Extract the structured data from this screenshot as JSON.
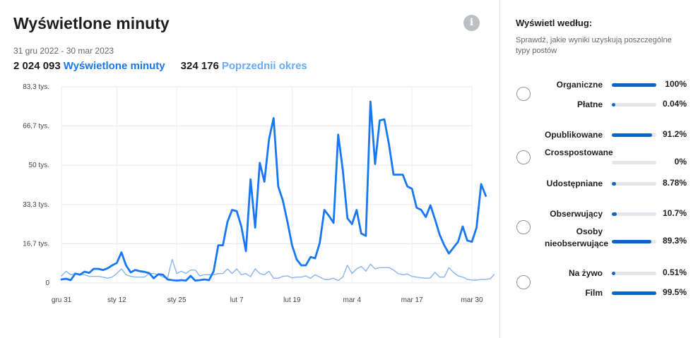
{
  "header": {
    "title": "Wyświetlone minuty",
    "date_range": "31 gru 2022 - 30 mar 2023",
    "current_total": "2 024 093",
    "current_label": "Wyświetlone minuty",
    "previous_total": "324 176",
    "previous_label": "Poprzednii okres"
  },
  "info_icon": "i",
  "colors": {
    "current": "#1877f2",
    "previous": "#8ab4f0",
    "bar": "#0a66c2",
    "track": "#e4e6eb"
  },
  "chart_data": {
    "type": "line",
    "ylim": [
      0,
      83.3
    ],
    "y_ticks": [
      "0",
      "16,7 tys.",
      "33,3 tys.",
      "50 tys.",
      "66,7 tys.",
      "83,3 tys."
    ],
    "y_tick_values": [
      0,
      16.7,
      33.3,
      50,
      66.7,
      83.3
    ],
    "x_ticks": [
      "gru 31",
      "sty 12",
      "sty 25",
      "lut 7",
      "lut 19",
      "mar 4",
      "mar 17",
      "mar 30"
    ],
    "x_tick_days": [
      0,
      12,
      25,
      38,
      50,
      63,
      76,
      89
    ],
    "x_max_day": 89,
    "series": [
      {
        "name": "Wyświetlone minuty",
        "values": [
          1.5,
          1.8,
          1.2,
          4,
          3.5,
          4.8,
          4.3,
          6,
          6,
          5.5,
          6.2,
          7.5,
          8.5,
          13,
          7.5,
          4.5,
          5.5,
          5,
          4.7,
          4.2,
          2,
          3.7,
          3.5,
          1.5,
          1.2,
          1,
          1.2,
          1,
          3,
          1,
          1.2,
          1.5,
          1.2,
          5,
          16,
          16,
          26,
          31,
          30.5,
          24,
          13.5,
          44,
          23.5,
          51,
          43,
          61,
          70,
          41,
          35,
          26,
          16,
          10,
          7.5,
          7.5,
          11,
          10.5,
          17,
          31,
          28.5,
          25.5,
          63,
          48,
          27.5,
          25,
          31,
          21,
          20,
          77,
          50.5,
          69,
          69.5,
          59,
          46,
          46,
          46,
          41,
          40,
          32,
          31,
          28,
          33,
          27,
          20.5,
          16,
          12.5,
          15,
          17.5,
          24,
          18,
          17.5,
          23.5,
          42,
          37
        ]
      },
      {
        "name": "Poprzednii okres",
        "values": [
          3,
          5,
          3.5,
          4,
          3.5,
          3.5,
          2.8,
          2.8,
          2.8,
          2.5,
          2,
          2.5,
          4,
          6,
          3.5,
          2.8,
          2.5,
          2.5,
          2.5,
          4,
          4,
          3.5,
          2.5,
          2,
          10,
          4,
          5,
          4,
          5.5,
          5.5,
          3,
          3.5,
          3.5,
          3.5,
          4,
          4,
          6,
          4,
          6,
          3.5,
          4,
          2.7,
          6,
          4,
          3.5,
          5,
          2,
          2,
          2.8,
          3,
          2.2,
          2.5,
          2.5,
          3,
          2,
          3.5,
          2.5,
          1.5,
          1.5,
          2,
          1,
          2.5,
          7.5,
          4,
          6,
          7,
          5,
          8,
          6,
          6.5,
          6.5,
          6.5,
          5.5,
          4,
          3.5,
          3.8,
          2.8,
          2.5,
          2.2,
          2,
          2.2,
          4.5,
          2.5,
          2.5,
          6.5,
          4.5,
          3,
          2.5,
          1.5,
          1.2,
          1.2,
          1.5,
          1.5,
          1.8,
          4
        ]
      }
    ]
  },
  "breakdown": {
    "title": "Wyświetl według:",
    "description": "Sprawdź, jakie wyniki uzyskują poszczególne typy postów",
    "groups": [
      {
        "rows": [
          {
            "label": "Organiczne",
            "pct": "100%",
            "value": 100
          },
          {
            "label": "Płatne",
            "pct": "0.04%",
            "value": 0.04
          }
        ]
      },
      {
        "rows": [
          {
            "label": "Opublikowane",
            "pct": "91.2%",
            "value": 91.2
          },
          {
            "label": "Crosspostowane",
            "pct": "0%",
            "value": 0
          },
          {
            "label": "Udostępniane",
            "pct": "8.78%",
            "value": 8.78
          }
        ]
      },
      {
        "rows": [
          {
            "label": "Obserwujący",
            "pct": "10.7%",
            "value": 10.7
          },
          {
            "label": "Osoby nieobserwujące",
            "pct": "89.3%",
            "value": 89.3
          }
        ]
      },
      {
        "rows": [
          {
            "label": "Na żywo",
            "pct": "0.51%",
            "value": 0.51
          },
          {
            "label": "Film",
            "pct": "99.5%",
            "value": 99.5
          }
        ]
      }
    ]
  }
}
